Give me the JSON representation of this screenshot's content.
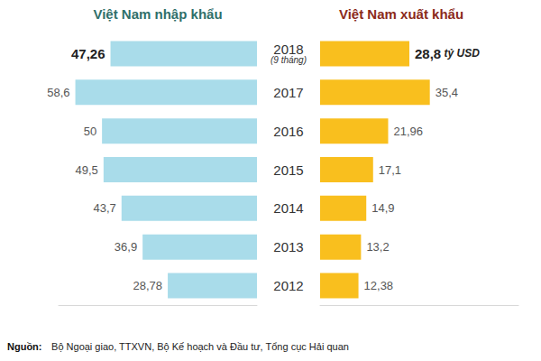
{
  "chart_data": {
    "type": "bar",
    "orientation": "horizontal",
    "categories": [
      "2018",
      "2017",
      "2016",
      "2015",
      "2014",
      "2013",
      "2012"
    ],
    "series": [
      {
        "name": "Việt Nam nhập khẩu",
        "color": "#a9dcea",
        "values": [
          47.26,
          58.6,
          50,
          49.5,
          43.7,
          36.9,
          28.78
        ],
        "value_labels": [
          "47,26",
          "58,6",
          "50",
          "49,5",
          "43,7",
          "36,9",
          "28,78"
        ]
      },
      {
        "name": "Việt Nam xuất khẩu",
        "color": "#f9bf1e",
        "values": [
          28.8,
          35.4,
          21.96,
          17.1,
          14.9,
          13.2,
          12.38
        ],
        "value_labels": [
          "28,8",
          "35,4",
          "21,96",
          "17,1",
          "14,9",
          "13,2",
          "12,38"
        ]
      }
    ],
    "xlim": [
      0,
      64
    ],
    "data_labels": true,
    "tick_labels": false,
    "grid": false,
    "annotations": [
      {
        "category": "2018",
        "text": "(9 tháng)"
      },
      {
        "category": "2018",
        "series": "Việt Nam xuất khẩu",
        "text": "tỷ USD"
      }
    ],
    "source": "Nguồn: Bộ Ngoại giao, TTXVN, Bộ Kế hoạch và Đầu tư, Tổng cục Hải quan"
  }
}
